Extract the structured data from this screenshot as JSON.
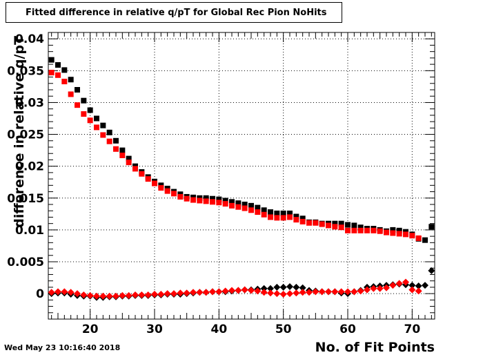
{
  "title": "Fitted difference in relative q/pT for Global Rec Pion NoHits",
  "timestamp": "Wed May 23 10:16:40 2018",
  "chart_data": {
    "type": "scatter",
    "title": "Fitted difference in relative q/pT for Global Rec Pion NoHits",
    "xlabel": "No. of Fit Points",
    "ylabel": "difference in relative q/pT",
    "xlim": [
      13.5,
      73.5
    ],
    "ylim": [
      -0.004,
      0.041
    ],
    "grid": true,
    "x_ticks": [
      20,
      30,
      40,
      50,
      60,
      70
    ],
    "y_ticks": [
      0,
      0.005,
      0.01,
      0.015,
      0.02,
      0.025,
      0.03,
      0.035,
      0.04
    ],
    "y_tick_labels": [
      "0",
      "0.005",
      "0.01",
      "0.015",
      "0.02",
      "0.025",
      "0.03",
      "0.035",
      "0.04"
    ],
    "x": [
      14,
      15,
      16,
      17,
      18,
      19,
      20,
      21,
      22,
      23,
      24,
      25,
      26,
      27,
      28,
      29,
      30,
      31,
      32,
      33,
      34,
      35,
      36,
      37,
      38,
      39,
      40,
      41,
      42,
      43,
      44,
      45,
      46,
      47,
      48,
      49,
      50,
      51,
      52,
      53,
      54,
      55,
      56,
      57,
      58,
      59,
      60,
      61,
      62,
      63,
      64,
      65,
      66,
      67,
      68,
      69,
      70,
      71,
      72,
      73
    ],
    "series": [
      {
        "marker": "square",
        "color": "#000000",
        "values": [
          0.0367,
          0.0359,
          0.0351,
          0.0336,
          0.032,
          0.0303,
          0.0288,
          0.0275,
          0.0264,
          0.0253,
          0.024,
          0.0225,
          0.0212,
          0.02,
          0.0191,
          0.0183,
          0.0176,
          0.017,
          0.0165,
          0.016,
          0.0156,
          0.0152,
          0.0151,
          0.015,
          0.015,
          0.0149,
          0.0148,
          0.0146,
          0.0144,
          0.0142,
          0.014,
          0.0138,
          0.0135,
          0.0131,
          0.0128,
          0.0126,
          0.0126,
          0.0126,
          0.0121,
          0.0118,
          0.0112,
          0.0112,
          0.011,
          0.011,
          0.011,
          0.011,
          0.0108,
          0.0107,
          0.0104,
          0.0102,
          0.0102,
          0.01,
          0.0098,
          0.01,
          0.0099,
          0.0097,
          0.0093,
          0.0086,
          0.0084,
          0.0105
        ]
      },
      {
        "marker": "square",
        "color": "#ff0000",
        "values": [
          0.0347,
          0.0343,
          0.0333,
          0.0313,
          0.0296,
          0.0282,
          0.0272,
          0.0261,
          0.0249,
          0.0239,
          0.0227,
          0.0217,
          0.0206,
          0.0196,
          0.0188,
          0.018,
          0.0173,
          0.0166,
          0.0161,
          0.0157,
          0.0152,
          0.0149,
          0.0147,
          0.0146,
          0.0145,
          0.0144,
          0.0143,
          0.0141,
          0.0138,
          0.0136,
          0.0134,
          0.0131,
          0.0128,
          0.0124,
          0.012,
          0.0119,
          0.0119,
          0.012,
          0.0116,
          0.0113,
          0.0111,
          0.0111,
          0.0109,
          0.0107,
          0.0105,
          0.0104,
          0.0099,
          0.0099,
          0.0099,
          0.0099,
          0.0099,
          0.0098,
          0.0096,
          0.0095,
          0.0094,
          0.0093,
          0.0091,
          0.0087,
          null,
          null
        ]
      },
      {
        "marker": "diamond",
        "color": "#000000",
        "values": [
          0.0,
          0.0001,
          0.0001,
          -0.0001,
          -0.0003,
          -0.0004,
          -0.0004,
          -0.0006,
          -0.0006,
          -0.0005,
          -0.0005,
          -0.0004,
          -0.0004,
          -0.0003,
          -0.0003,
          -0.0003,
          -0.0002,
          -0.0002,
          -0.0001,
          -0.0001,
          -0.0001,
          0.0,
          0.0001,
          0.0002,
          0.0002,
          0.0003,
          0.0003,
          0.0003,
          0.0004,
          0.0005,
          0.0006,
          0.0006,
          0.0007,
          0.0008,
          0.0008,
          0.001,
          0.001,
          0.0011,
          0.001,
          0.0009,
          0.0005,
          0.0004,
          0.0003,
          0.0003,
          0.0003,
          0.0001,
          0.0,
          0.0003,
          0.0005,
          0.001,
          0.0011,
          0.0012,
          0.0013,
          0.0014,
          0.0015,
          0.0014,
          0.0013,
          0.0012,
          0.0013,
          0.0036
        ]
      },
      {
        "marker": "diamond",
        "color": "#ff0000",
        "values": [
          0.0002,
          0.0003,
          0.0003,
          0.0002,
          0.0,
          -0.0002,
          -0.0003,
          -0.0004,
          -0.0004,
          -0.0004,
          -0.0004,
          -0.0003,
          -0.0003,
          -0.0002,
          -0.0002,
          -0.0002,
          -0.0001,
          -0.0001,
          0.0,
          0.0,
          0.0001,
          0.0001,
          0.0002,
          0.0002,
          0.0002,
          0.0003,
          0.0003,
          0.0004,
          0.0005,
          0.0005,
          0.0006,
          0.0005,
          0.0004,
          0.0002,
          0.0001,
          0.0,
          -0.0001,
          0.0,
          0.0001,
          0.0002,
          0.0002,
          0.0003,
          0.0003,
          0.0003,
          0.0003,
          0.0003,
          0.0003,
          0.0003,
          0.0004,
          0.0006,
          0.0008,
          0.0008,
          0.0009,
          0.0013,
          0.0016,
          0.0018,
          0.0006,
          0.0004,
          null,
          null
        ]
      }
    ]
  }
}
